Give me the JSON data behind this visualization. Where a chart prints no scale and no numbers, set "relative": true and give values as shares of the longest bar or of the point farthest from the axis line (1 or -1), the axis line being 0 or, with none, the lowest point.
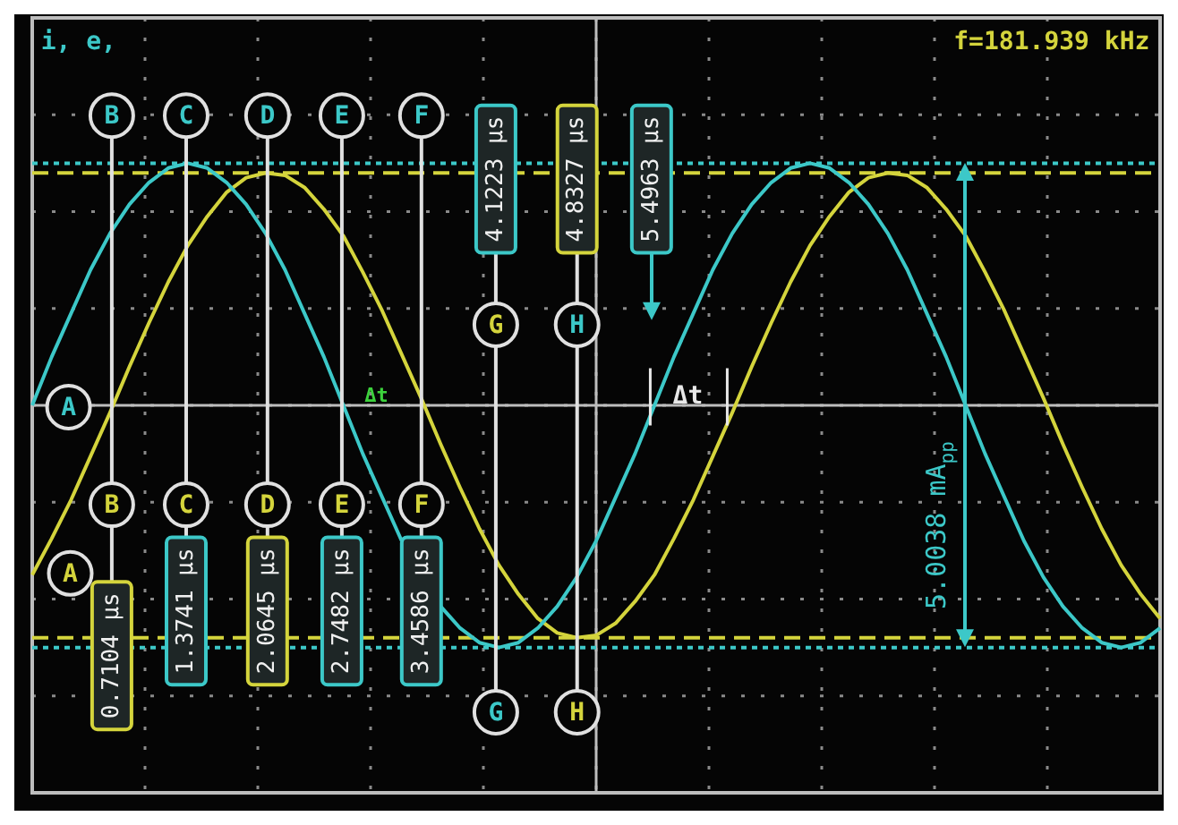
{
  "chart_data": {
    "type": "line",
    "relative": true,
    "categories": [
      null,
      null,
      null,
      null,
      null,
      null,
      null,
      null,
      null,
      null,
      null,
      null,
      null,
      null,
      null,
      null,
      null,
      null,
      null,
      null,
      null,
      null,
      null,
      null,
      null,
      null,
      null,
      null,
      null,
      null,
      null,
      null,
      null,
      null,
      null,
      null,
      null,
      null,
      null,
      null,
      null,
      null,
      null,
      null,
      null,
      null,
      null,
      null,
      null,
      null,
      null,
      null,
      null,
      null,
      null,
      null,
      null,
      null,
      null
    ],
    "series": [
      {
        "color": "#3cc8c8",
        "values": [
          0,
          0.2,
          0.38,
          0.56,
          0.71,
          0.83,
          0.92,
          0.98,
          1,
          0.98,
          0.92,
          0.83,
          0.71,
          0.56,
          0.38,
          0.2,
          0,
          -0.2,
          -0.38,
          -0.56,
          null,
          -0.83,
          -0.92,
          -0.98,
          -1,
          -0.98,
          -0.92,
          -0.83,
          -0.71,
          -0.56,
          -0.38,
          -0.2,
          0,
          0.2,
          0.38,
          0.56,
          0.71,
          0.83,
          0.92,
          0.98,
          1,
          0.98,
          0.92,
          0.83,
          0.71,
          0.56,
          0.38,
          0.2,
          0,
          -0.2,
          -0.38,
          -0.56,
          -0.71,
          -0.83,
          -0.92,
          -0.98,
          -1,
          -0.98,
          -0.92
        ]
      },
      {
        "color": "#d4d43c",
        "values": [
          -0.7,
          -0.55,
          -0.39,
          -0.21,
          -0.03,
          0.16,
          0.34,
          0.51,
          0.66,
          0.78,
          0.88,
          0.94,
          0.96,
          0.95,
          0.9,
          0.81,
          0.7,
          0.55,
          0.39,
          0.21,
          0.03,
          -0.16,
          -0.34,
          -0.51,
          -0.66,
          -0.78,
          -0.88,
          -0.94,
          -0.96,
          -0.95,
          -0.9,
          -0.81,
          -0.7,
          -0.55,
          -0.39,
          -0.21,
          -0.03,
          0.16,
          0.34,
          0.51,
          0.66,
          0.78,
          0.88,
          0.94,
          0.96,
          0.95,
          0.9,
          0.81,
          0.7,
          0.55,
          0.39,
          0.21,
          0.03,
          -0.16,
          -0.34,
          -0.51,
          -0.66,
          -0.78,
          -0.88
        ]
      }
    ],
    "grid": true,
    "legend": false,
    "marker": "none",
    "line_style": "solid",
    "ref_lines": [
      {
        "axis": "y",
        "value": 1,
        "color": "#3cc8c8",
        "line_style": "dotted"
      },
      {
        "axis": "y",
        "value": 0.96,
        "color": "#d4d43c",
        "line_style": "dashed"
      },
      {
        "axis": "y",
        "value": -0.96,
        "color": "#d4d43c",
        "line_style": "dashed"
      },
      {
        "axis": "y",
        "value": -1,
        "color": "#3cc8c8",
        "line_style": "dotted"
      }
    ],
    "annotations": [
      "i, e,",
      "f=181.939 kHz",
      "A",
      "A",
      "B",
      "C",
      "D",
      "E",
      "F",
      "G",
      "H",
      "B",
      "C",
      "D",
      "E",
      "F",
      "G",
      "H",
      "0.7104 µs",
      "1.3741 µs",
      "2.0645 µs",
      "2.7482 µs",
      "3.4586 µs",
      "4.1223 µs",
      "4.8327 µs",
      "5.4963 µs",
      "Δt",
      "Δt",
      "5.0038 mA$_{pp}$"
    ]
  }
}
